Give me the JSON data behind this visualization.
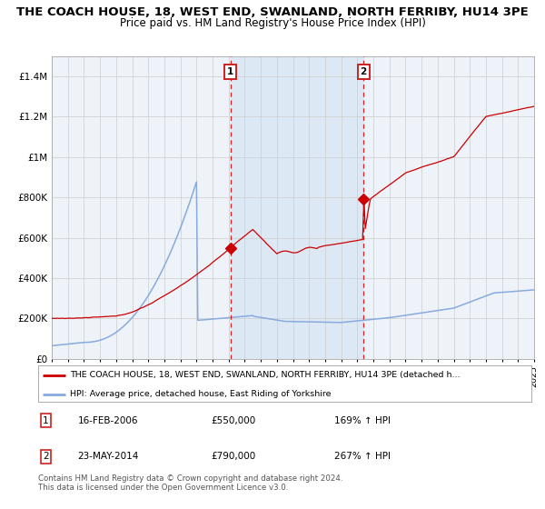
{
  "title": "THE COACH HOUSE, 18, WEST END, SWANLAND, NORTH FERRIBY, HU14 3PE",
  "subtitle": "Price paid vs. HM Land Registry's House Price Index (HPI)",
  "title_fontsize": 9.5,
  "subtitle_fontsize": 8.5,
  "x_start_year": 1995,
  "x_end_year": 2025,
  "ylim": [
    0,
    1500000
  ],
  "yticks": [
    0,
    200000,
    400000,
    600000,
    800000,
    1000000,
    1200000,
    1400000
  ],
  "ytick_labels": [
    "£0",
    "£200K",
    "£400K",
    "£600K",
    "£800K",
    "£1M",
    "£1.2M",
    "£1.4M"
  ],
  "transaction1_date": 2006.12,
  "transaction1_value": 550000,
  "transaction1_label": "1",
  "transaction2_date": 2014.39,
  "transaction2_value": 790000,
  "transaction2_label": "2",
  "red_line_color": "#cc0000",
  "blue_line_color": "#88aadd",
  "shade_color": "#dde8f5",
  "dashed_color": "#cc0000",
  "grid_color": "#cccccc",
  "background_color": "#ffffff",
  "plot_bg_color": "#eef3fa",
  "legend_line1": "THE COACH HOUSE, 18, WEST END, SWANLAND, NORTH FERRIBY, HU14 3PE (detached h...",
  "legend_line2": "HPI: Average price, detached house, East Riding of Yorkshire",
  "table_row1": [
    "1",
    "16-FEB-2006",
    "£550,000",
    "169% ↑ HPI"
  ],
  "table_row2": [
    "2",
    "23-MAY-2014",
    "£790,000",
    "267% ↑ HPI"
  ],
  "footer": "Contains HM Land Registry data © Crown copyright and database right 2024.\nThis data is licensed under the Open Government Licence v3.0."
}
